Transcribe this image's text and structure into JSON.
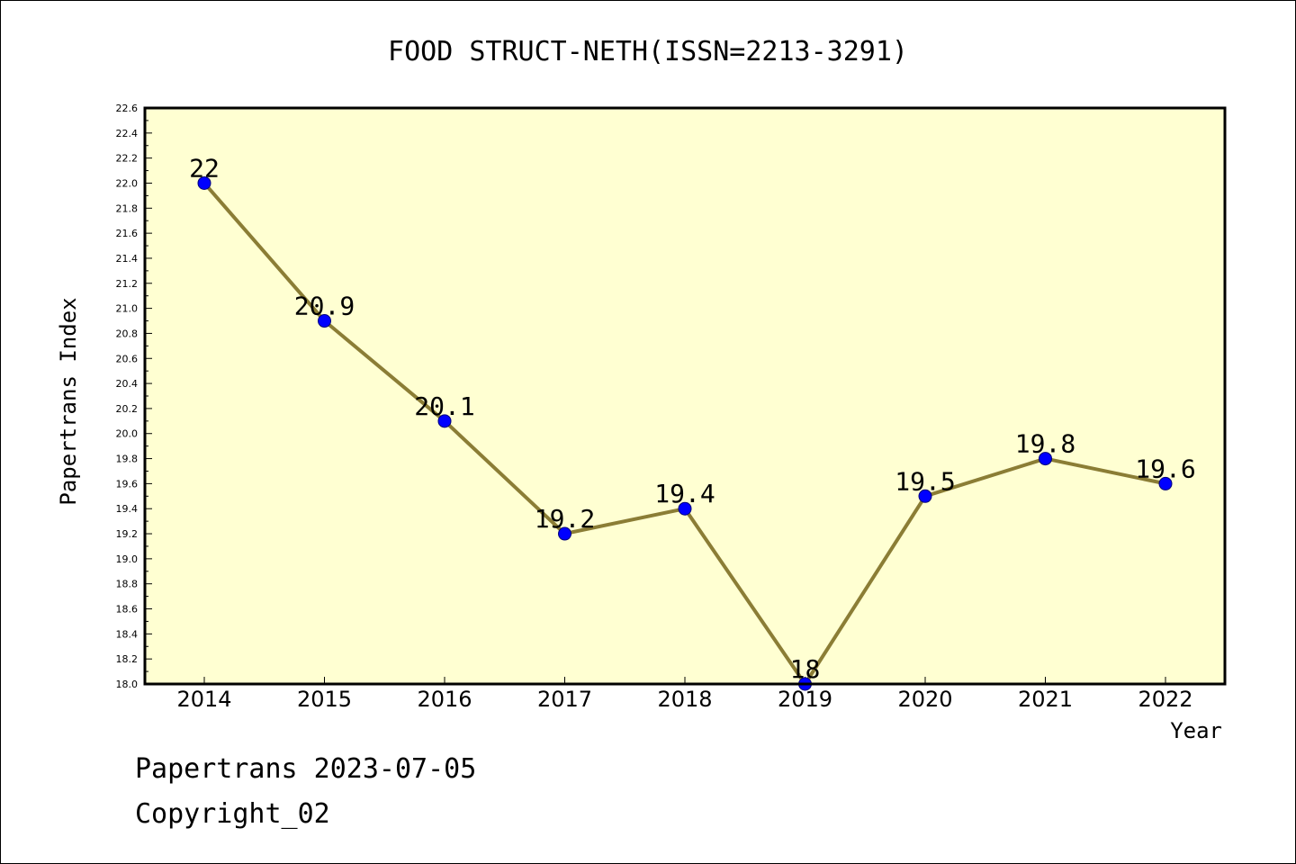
{
  "footer": {
    "line1": "Papertrans 2023-07-05",
    "line2": "Copyright_02"
  },
  "colors": {
    "plot_background": "#ffffd2",
    "line": "#8b7d35",
    "marker": "#0000ff",
    "axis": "#000000"
  },
  "chart_data": {
    "type": "line",
    "title": "FOOD STRUCT-NETH(ISSN=2213-3291)",
    "xlabel": "Year",
    "ylabel": "Papertrans Index",
    "categories": [
      "2014",
      "2015",
      "2016",
      "2017",
      "2018",
      "2019",
      "2020",
      "2021",
      "2022"
    ],
    "values": [
      22,
      20.9,
      20.1,
      19.2,
      19.4,
      18,
      19.5,
      19.8,
      19.6
    ],
    "data_labels": [
      "22",
      "20.9",
      "20.1",
      "19.2",
      "19.4",
      "18",
      "19.5",
      "19.8",
      "19.6"
    ],
    "ylim": [
      18.0,
      22.6
    ],
    "yticks": [
      "18.0",
      "18.2",
      "18.4",
      "18.6",
      "18.8",
      "19.0",
      "19.2",
      "19.4",
      "19.6",
      "19.8",
      "20.0",
      "20.2",
      "20.4",
      "20.6",
      "20.8",
      "21.0",
      "21.2",
      "21.4",
      "21.6",
      "21.8",
      "22.0",
      "22.2",
      "22.4",
      "22.6"
    ],
    "grid": false,
    "legend": "none"
  }
}
